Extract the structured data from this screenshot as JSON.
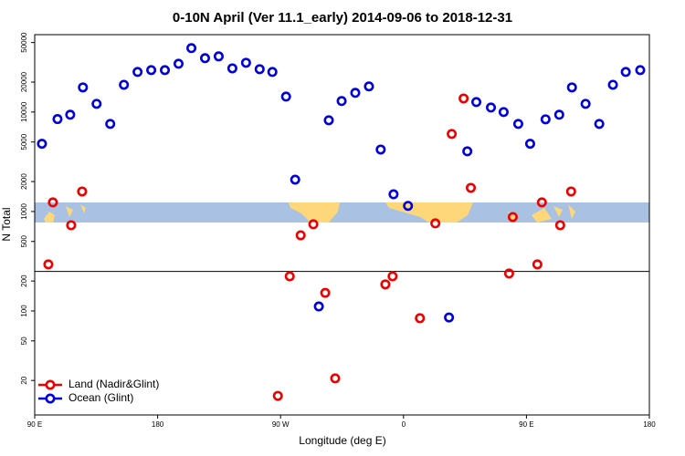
{
  "chart_data": {
    "type": "scatter",
    "title": "0-10N April (Ver 11.1_early)   2014-09-06 to 2018-12-31",
    "xlabel": "Longitude (deg E)",
    "ylabel": "N Total",
    "ylog": true,
    "xlim": [
      90,
      540
    ],
    "ylim": [
      9,
      60000
    ],
    "xticks": [
      {
        "value": 90,
        "label": "90 E"
      },
      {
        "value": 180,
        "label": "180"
      },
      {
        "value": 270,
        "label": "90 W"
      },
      {
        "value": 360,
        "label": "0"
      },
      {
        "value": 450,
        "label": "90 E"
      },
      {
        "value": 540,
        "label": "180"
      }
    ],
    "yticks": [
      20,
      50,
      100,
      200,
      500,
      1000,
      2000,
      5000,
      10000,
      20000,
      50000
    ],
    "reference_line": 250,
    "legend": "bottom-left",
    "series": [
      {
        "name": "Land (Nadir&Glint)",
        "color": "#ee0000",
        "x": [
          100,
          103.3,
          116.7,
          124.7,
          276.7,
          284.7,
          294,
          302.7,
          310,
          268,
          346.7,
          352,
          372,
          383.3,
          395.3,
          404,
          409.3,
          437.3,
          440,
          458,
          461.3,
          474.7,
          482.7
        ],
        "values": [
          294,
          1235,
          728,
          1590,
          223,
          577,
          744,
          152,
          21,
          14,
          185,
          223,
          84.5,
          760,
          6025,
          13700,
          1730,
          238,
          880,
          294,
          1235,
          728,
          1590
        ]
      },
      {
        "name": "Ocean (Glint)",
        "color": "#0000dd",
        "x": [
          95.3,
          106.7,
          116,
          125.3,
          135.3,
          145.3,
          155.3,
          165.3,
          175.3,
          185.3,
          195.3,
          204.7,
          214.7,
          224.7,
          234.7,
          244.7,
          254.7,
          264,
          274,
          280.7,
          298,
          305.3,
          314.7,
          324.7,
          334.7,
          343.3,
          352.7,
          363.3,
          393.3,
          406.7,
          413.3,
          424,
          433.3,
          444,
          452.7,
          464,
          474,
          483.3,
          493.3,
          503.3,
          513.3,
          522.7,
          533.3
        ],
        "values": [
          4800,
          8500,
          9400,
          17700,
          12100,
          7600,
          18800,
          25300,
          26400,
          26400,
          30600,
          43900,
          34800,
          36300,
          27500,
          31300,
          27000,
          25300,
          14300,
          2090,
          111,
          8270,
          12900,
          15600,
          18100,
          4200,
          1490,
          1140,
          86,
          4030,
          12600,
          11100,
          10000,
          7600,
          4800,
          8450,
          9400,
          17700,
          12100,
          7600,
          18800,
          25300,
          26400
        ]
      }
    ]
  }
}
